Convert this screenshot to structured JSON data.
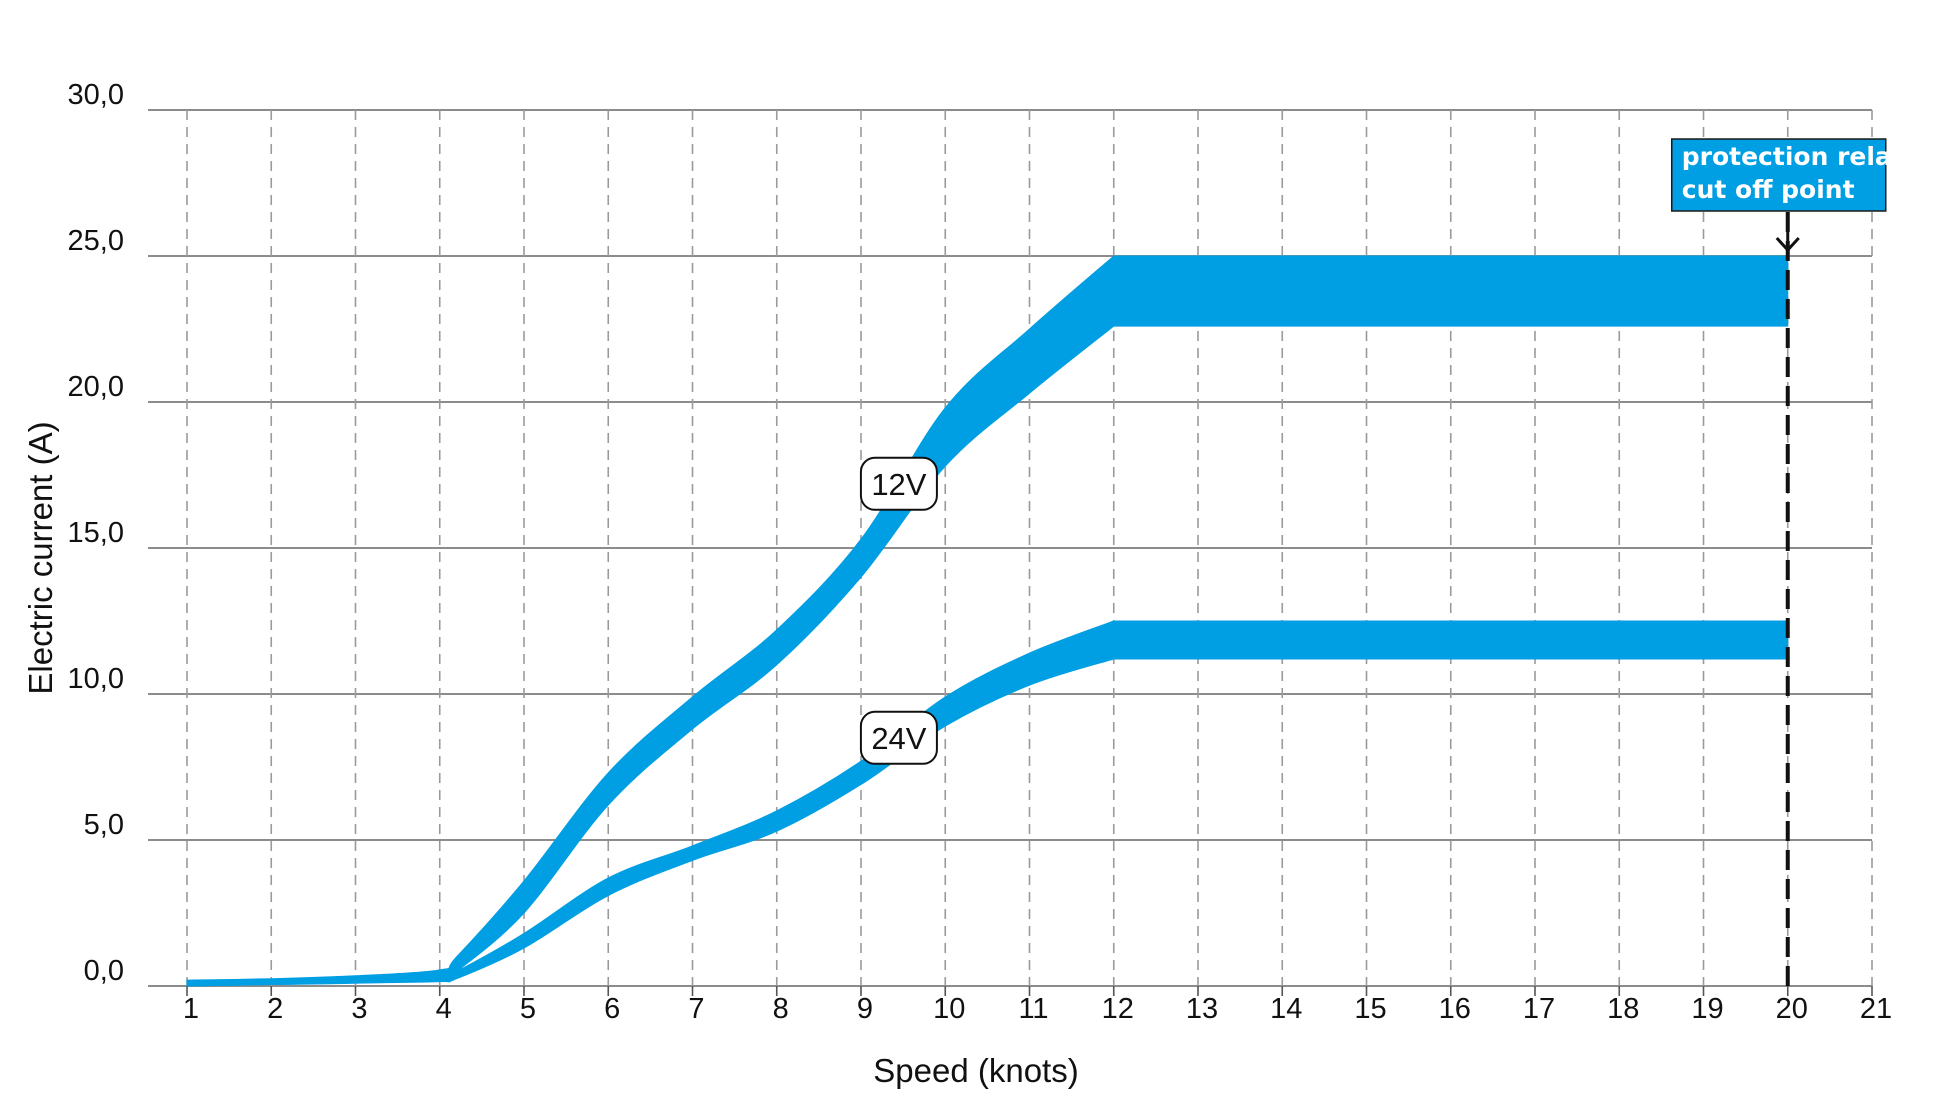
{
  "chart_data": {
    "type": "area",
    "xlabel": "Speed (knots)",
    "ylabel": "Electric current (A)",
    "x_ticks": [
      "1",
      "2",
      "3",
      "4",
      "5",
      "6",
      "7",
      "8",
      "9",
      "10",
      "11",
      "12",
      "13",
      "14",
      "15",
      "16",
      "17",
      "18",
      "19",
      "20",
      "21"
    ],
    "y_ticks": [
      "0,0",
      "5,0",
      "10,0",
      "15,0",
      "20,0",
      "25,0",
      "30,0"
    ],
    "xlim": [
      0.5,
      21
    ],
    "ylim": [
      0,
      30
    ],
    "grid": true,
    "series": [
      {
        "name": "12V",
        "x": [
          1,
          2,
          3,
          4,
          4.2,
          5,
          6,
          7,
          8,
          9,
          10,
          11,
          12,
          20
        ],
        "lower": [
          0.0,
          0.05,
          0.1,
          0.25,
          0.5,
          2.5,
          6.2,
          8.8,
          11.0,
          14.0,
          17.8,
          20.3,
          22.6,
          22.6
        ],
        "upper": [
          0.2,
          0.25,
          0.35,
          0.55,
          1.0,
          3.6,
          7.3,
          9.9,
          12.2,
          15.3,
          19.8,
          22.5,
          25.0,
          25.0
        ]
      },
      {
        "name": "24V",
        "x": [
          1,
          2,
          3,
          4,
          4.2,
          5,
          6,
          7,
          8,
          9,
          10,
          11,
          12,
          20
        ],
        "lower": [
          0.0,
          0.05,
          0.1,
          0.15,
          0.25,
          1.3,
          3.1,
          4.3,
          5.3,
          6.9,
          8.9,
          10.3,
          11.2,
          11.2
        ],
        "upper": [
          0.1,
          0.15,
          0.2,
          0.3,
          0.5,
          1.8,
          3.7,
          4.8,
          6.0,
          7.7,
          9.9,
          11.4,
          12.5,
          12.5
        ]
      }
    ],
    "labels": [
      {
        "text": "12V",
        "x": 9.45,
        "y": 17.2
      },
      {
        "text": "24V",
        "x": 9.45,
        "y": 8.5
      }
    ],
    "annotation": {
      "lines": [
        "protection relay",
        "cut off point"
      ],
      "x": 20,
      "points_to_y": 25.0
    },
    "colors": {
      "band": "#009fe3",
      "grid": "#8c8c8c",
      "annotation_bg": "#009fe3",
      "annotation_text": "#ffffff"
    }
  }
}
